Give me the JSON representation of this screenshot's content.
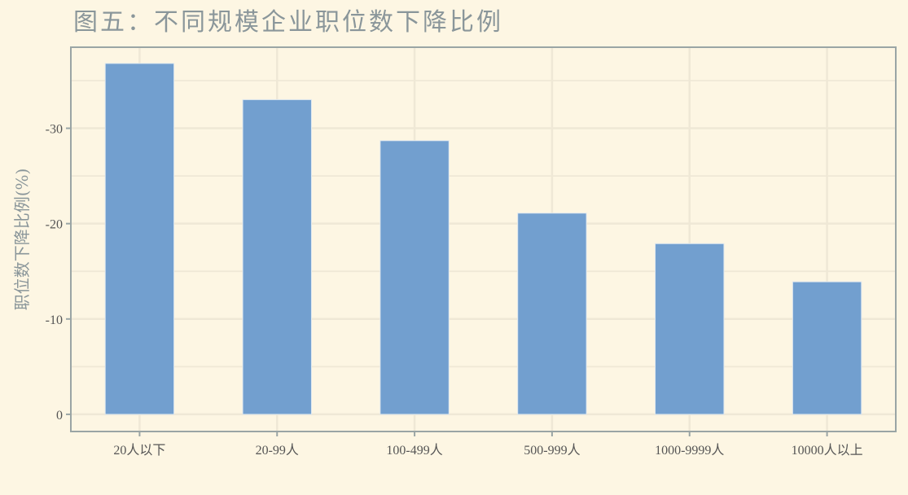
{
  "chart_data": {
    "type": "bar",
    "title": "图五：不同规模企业职位数下降比例",
    "xlabel": "",
    "ylabel": "职位数下降比例(%)",
    "categories": [
      "20人以下",
      "20-99人",
      "100-499人",
      "500-999人",
      "1000-9999人",
      "10000人以上"
    ],
    "values": [
      -36.8,
      -33.0,
      -28.7,
      -21.1,
      -17.9,
      -13.9
    ],
    "y_ticks": [
      "0",
      "-10",
      "-20",
      "-30"
    ],
    "y_tick_values": [
      0,
      -10,
      -20,
      -30
    ],
    "ylim": [
      1.8,
      -38.5
    ],
    "y_axis_reversed": true,
    "grid": true,
    "bar_color": "#729fcf",
    "background_color": "#fdf6e3"
  }
}
